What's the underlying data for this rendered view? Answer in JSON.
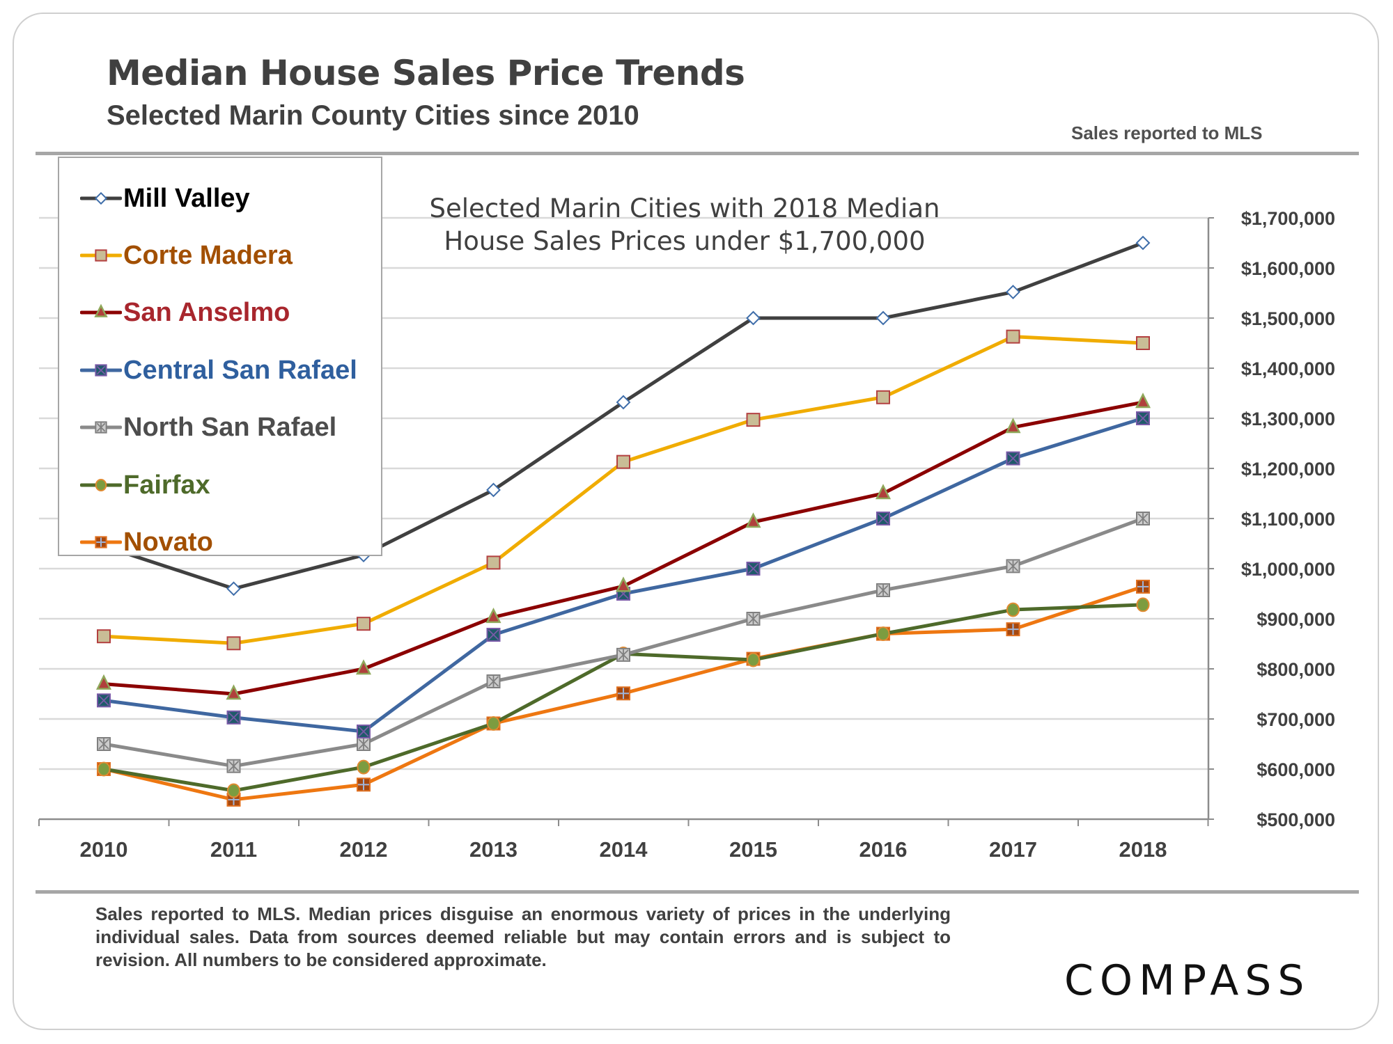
{
  "header": {
    "title": "Median House Sales Price Trends",
    "subtitle": "Selected Marin County Cities since 2010",
    "source_note": "Sales reported to MLS"
  },
  "footer": {
    "disclaimer": "Sales reported to MLS. Median prices disguise an enormous variety of prices in the underlying individual sales. Data from sources deemed reliable but may contain errors and is subject to revision. All numbers to be considered approximate.",
    "logo": "COMPASS"
  },
  "chart_data": {
    "type": "line",
    "title": "Selected Marin Cities with 2018 Median House Sales Prices under $1,700,000",
    "title_lines": [
      "Selected Marin Cities with 2018 Median",
      "House Sales Prices under $1,700,000"
    ],
    "xlabel": "",
    "ylabel": "",
    "x": [
      "2010",
      "2011",
      "2012",
      "2013",
      "2014",
      "2015",
      "2016",
      "2017",
      "2018"
    ],
    "ylim": [
      500000,
      1700000
    ],
    "y_ticks": [
      500000,
      600000,
      700000,
      800000,
      900000,
      1000000,
      1100000,
      1200000,
      1300000,
      1400000,
      1500000,
      1600000,
      1700000
    ],
    "y_tick_labels": [
      "$500,000",
      "$600,000",
      "$700,000",
      "$800,000",
      "$900,000",
      "$1,000,000",
      "$1,100,000",
      "$1,200,000",
      "$1,300,000",
      "$1,400,000",
      "$1,500,000",
      "$1,600,000",
      "$1,700,000"
    ],
    "y_axis_side": "right",
    "grid": true,
    "legend_position": "top-left",
    "series": [
      {
        "name": "Mill Valley",
        "color": "#404040",
        "label_color": "#000000",
        "marker": "diamond",
        "marker_fill": "#ffffff",
        "marker_stroke": "#3f6eaa",
        "values": [
          1045000,
          960000,
          1027000,
          1157000,
          1332000,
          1500000,
          1500000,
          1552000,
          1650000
        ]
      },
      {
        "name": "Corte Madera",
        "color": "#f0ac00",
        "label_color": "#a24f00",
        "marker": "square",
        "marker_fill": "#c9bd96",
        "marker_stroke": "#b34040",
        "values": [
          865000,
          851000,
          890000,
          1012000,
          1213000,
          1297000,
          1342000,
          1463000,
          1450000
        ]
      },
      {
        "name": "San Anselmo",
        "color": "#8b0000",
        "label_color": "#a8262d",
        "marker": "triangle",
        "marker_fill": "#b0403c",
        "marker_stroke": "#8fa85a",
        "values": [
          770000,
          750000,
          800000,
          903000,
          965000,
          1093000,
          1150000,
          1282000,
          1332000
        ]
      },
      {
        "name": "Central San Rafael",
        "color": "#3f67a0",
        "label_color": "#2f5f9e",
        "marker": "square-x",
        "marker_fill": "#1f5a6a",
        "marker_stroke": "#7a5aa8",
        "values": [
          737000,
          703000,
          675000,
          868000,
          950000,
          1000000,
          1100000,
          1220000,
          1300000
        ]
      },
      {
        "name": "North San Rafael",
        "color": "#8a8a8a",
        "label_color": "#4d4d4d",
        "marker": "square-star",
        "marker_fill": "#cccccc",
        "marker_stroke": "#7f7f7f",
        "values": [
          650000,
          606000,
          650000,
          775000,
          828000,
          900000,
          957000,
          1005000,
          1100000
        ]
      },
      {
        "name": "Fairfax",
        "color": "#4e6a2a",
        "label_color": "#4e6a2a",
        "marker": "circle",
        "marker_fill": "#7c9c40",
        "marker_stroke": "#e08a30",
        "values": [
          600000,
          557000,
          604000,
          691000,
          830000,
          818000,
          870000,
          918000,
          928000
        ]
      },
      {
        "name": "Novato",
        "color": "#ee7711",
        "label_color": "#a24f00",
        "marker": "square-plus",
        "marker_fill": "#a6480f",
        "marker_stroke": "#e07020",
        "values": [
          600000,
          539000,
          569000,
          691000,
          751000,
          820000,
          870000,
          879000,
          964000
        ]
      }
    ]
  }
}
